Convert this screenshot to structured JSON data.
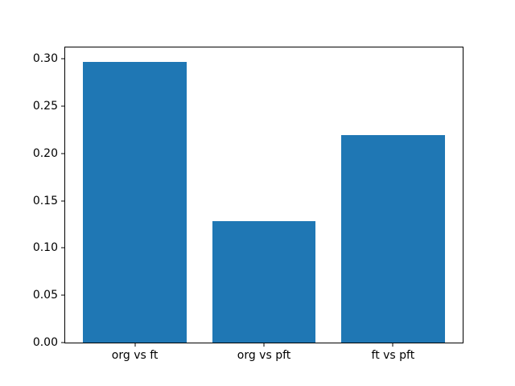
{
  "figure": {
    "background_color": "#ffffff"
  },
  "chart_data": {
    "type": "bar",
    "title": "",
    "xlabel": "",
    "ylabel": "",
    "categories": [
      "org vs ft",
      "org vs pft",
      "ft vs pft"
    ],
    "values": [
      0.297,
      0.128,
      0.219
    ],
    "bar_color": "#1f77b4",
    "bar_width_fraction": 0.8,
    "ylim": [
      0,
      0.312
    ],
    "yticks": [
      0.0,
      0.05,
      0.1,
      0.15,
      0.2,
      0.25,
      0.3
    ],
    "ytick_decimals": 2,
    "grid": false,
    "legend": null,
    "axes_edge_color": "#000000",
    "tick_color": "#000000",
    "tick_label_color": "#000000"
  }
}
